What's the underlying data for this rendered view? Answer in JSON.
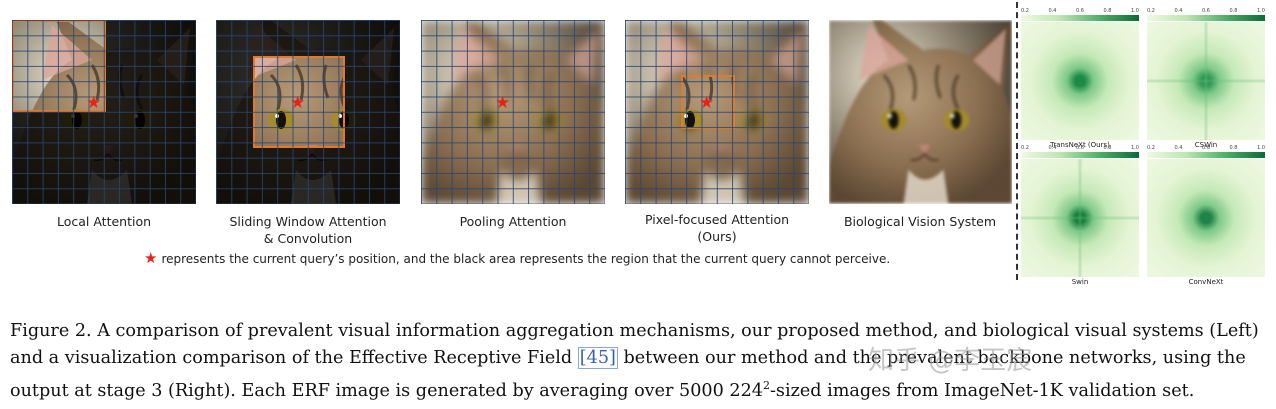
{
  "panels": [
    {
      "caption": "Local Attention"
    },
    {
      "caption_line1": "Sliding Window Attention",
      "caption_line2": "& Convolution"
    },
    {
      "caption": "Pooling Attention"
    },
    {
      "caption_line1": "Pixel-focused Attention",
      "caption_line2": "(Ours)"
    },
    {
      "caption": "Biological Vision System"
    }
  ],
  "legend": {
    "star": "★",
    "text": "represents the current query’s position, and the black area represents the region that the current query cannot perceive."
  },
  "erf": {
    "colorbar_ticks": [
      "0.2",
      "0.4",
      "0.6",
      "0.8",
      "1.0"
    ],
    "maps": [
      {
        "label": "TransNeXt (Ours)",
        "core_color": "#1e8a47"
      },
      {
        "label": "CSWin",
        "core_color": "#2f9a55"
      },
      {
        "label": "Swin",
        "core_color": "#17803f"
      },
      {
        "label": "ConvNeXt",
        "core_color": "#1e8447"
      }
    ]
  },
  "caption": {
    "part1": "Figure 2. A comparison of prevalent visual information aggregation mechanisms, our proposed method, and biological visual systems (Left) and a visualization comparison of the Effective Receptive Field ",
    "ref": "[45]",
    "part2": " between our method and the prevalent backbone networks, using the output at stage 3 (Right). Each ERF image is generated by averaging over 5000 224",
    "sup": "2",
    "part3": "-sized images from ImageNet-1K validation set."
  },
  "watermark": "知乎 @李玉宸"
}
